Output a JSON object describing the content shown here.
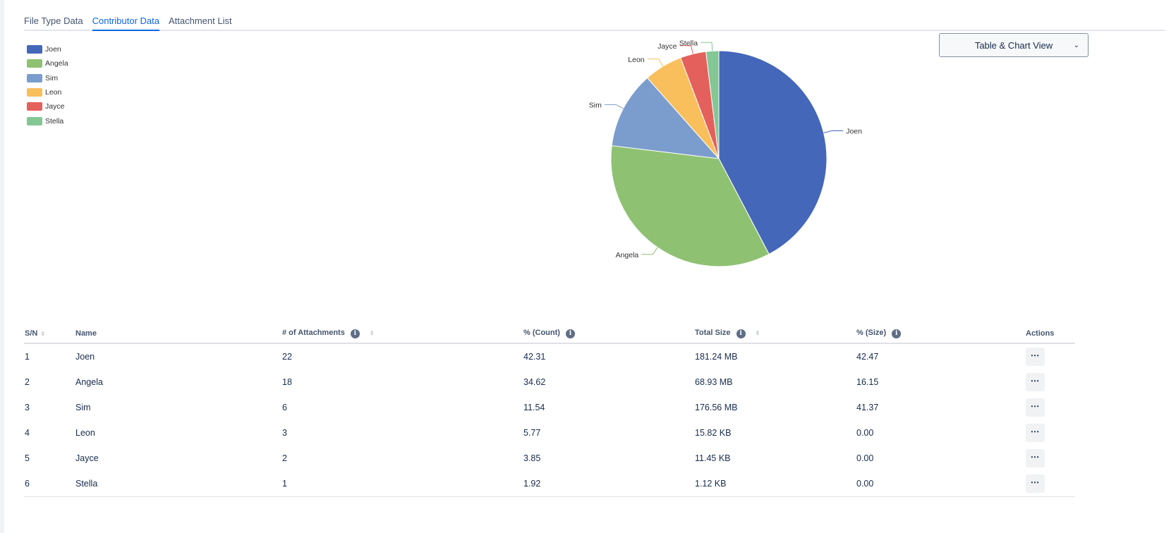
{
  "tabs": [
    {
      "label": "File Type Data"
    },
    {
      "label": "Contributor Data"
    },
    {
      "label": "Attachment List"
    }
  ],
  "view_select": {
    "label": "Table & Chart View",
    "icon": "chevron-down-icon"
  },
  "chart_data": {
    "type": "pie",
    "legend": "top-left",
    "slices": [
      {
        "name": "Joen",
        "value": 42.31,
        "color": "#4467b9"
      },
      {
        "name": "Angela",
        "value": 34.62,
        "color": "#8fc172"
      },
      {
        "name": "Sim",
        "value": 11.54,
        "color": "#7b9dcd"
      },
      {
        "name": "Leon",
        "value": 5.77,
        "color": "#f9bf5c"
      },
      {
        "name": "Jayce",
        "value": 3.85,
        "color": "#e4605c"
      },
      {
        "name": "Stella",
        "value": 1.92,
        "color": "#83c795"
      }
    ]
  },
  "table": {
    "headers": [
      "S/N",
      "Name",
      "# of Attachments",
      "% (Count)",
      "Total Size",
      "% (Size)",
      "Actions"
    ],
    "rows": [
      [
        "1",
        "Joen",
        "22",
        "42.31",
        "181.24 MB",
        "42.47"
      ],
      [
        "2",
        "Angela",
        "18",
        "34.62",
        "68.93 MB",
        "16.15"
      ],
      [
        "3",
        "Sim",
        "6",
        "11.54",
        "176.56 MB",
        "41.37"
      ],
      [
        "4",
        "Leon",
        "3",
        "5.77",
        "15.82 KB",
        "0.00"
      ],
      [
        "5",
        "Jayce",
        "2",
        "3.85",
        "11.45 KB",
        "0.00"
      ],
      [
        "6",
        "Stella",
        "1",
        "1.92",
        "1.12 KB",
        "0.00"
      ]
    ],
    "actions_label": "⋯"
  }
}
